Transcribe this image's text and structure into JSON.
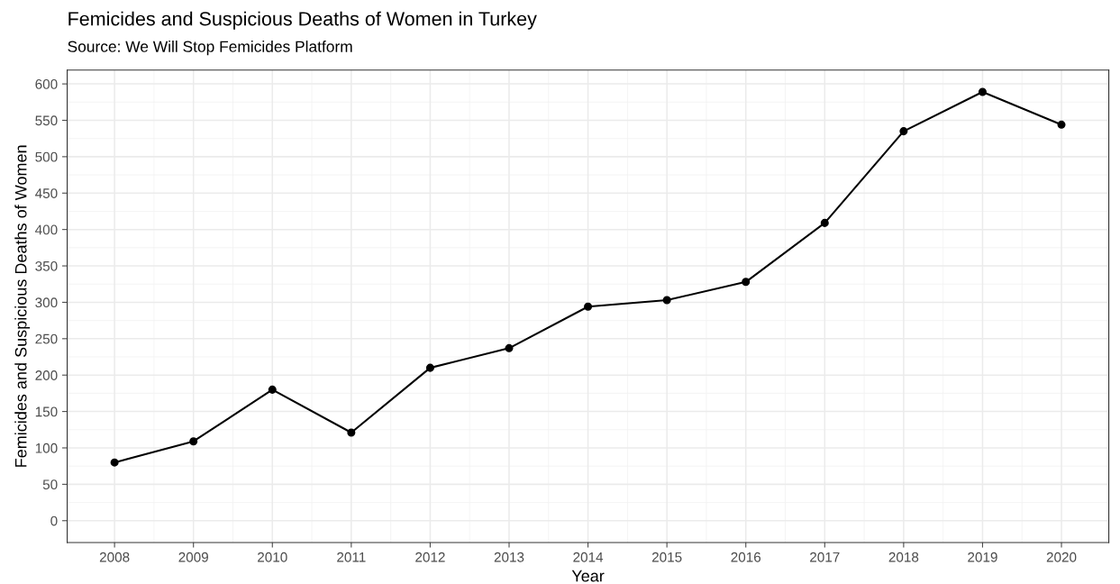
{
  "chart_data": {
    "type": "line",
    "title": "Femicides and Suspicious Deaths of Women in Turkey",
    "subtitle": "Source: We Will Stop Femicides Platform",
    "xlabel": "Year",
    "ylabel": "Femicides and Suspicious Deaths of Women",
    "x": [
      2008,
      2009,
      2010,
      2011,
      2012,
      2013,
      2014,
      2015,
      2016,
      2017,
      2018,
      2019,
      2020
    ],
    "series": [
      {
        "color": "#000000",
        "values": [
          80,
          109,
          180,
          121,
          210,
          237,
          294,
          303,
          328,
          409,
          535,
          589,
          544
        ]
      }
    ],
    "xlim": [
      2007.4,
      2020.6
    ],
    "xticks": [
      2008,
      2009,
      2010,
      2011,
      2012,
      2013,
      2014,
      2015,
      2016,
      2017,
      2018,
      2019,
      2020
    ],
    "ylim": [
      -30,
      619
    ],
    "yticks": [
      0,
      50,
      100,
      150,
      200,
      250,
      300,
      350,
      400,
      450,
      500,
      550,
      600
    ],
    "grid": true,
    "marker": "circle",
    "line_style": "solid",
    "legend": false
  }
}
